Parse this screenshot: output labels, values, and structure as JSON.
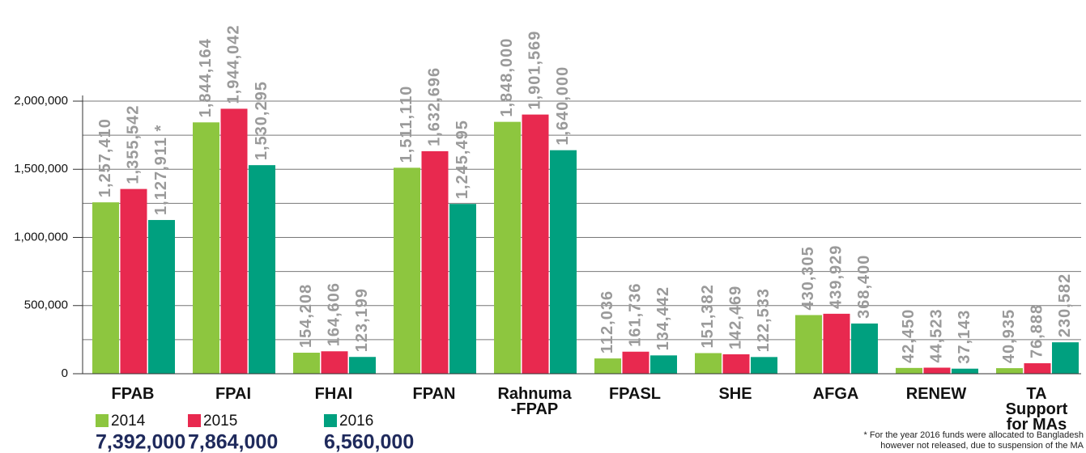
{
  "chart_data": {
    "type": "bar",
    "categories": [
      "FPAB",
      "FPAI",
      "FHAI",
      "FPAN",
      "Rahnuma\n-FPAP",
      "FPASL",
      "SHE",
      "AFGA",
      "RENEW",
      "TA\nSupport\nfor MAs"
    ],
    "series": [
      {
        "name": "2014",
        "color": "#8dc63f",
        "total": "7,392,000",
        "values": [
          1257410,
          1844164,
          154208,
          1511110,
          1848000,
          112036,
          151382,
          430305,
          42450,
          40935
        ],
        "value_labels": [
          "1,257,410",
          "1,844,164",
          "154,208",
          "1,511,110",
          "1,848,000",
          "112,036",
          "151,382",
          "430,305",
          "42,450",
          "40,935"
        ]
      },
      {
        "name": "2015",
        "color": "#e8294f",
        "total": "7,864,000",
        "values": [
          1355542,
          1944042,
          164606,
          1632696,
          1901569,
          161736,
          142469,
          439929,
          44523,
          76888
        ],
        "value_labels": [
          "1,355,542",
          "1,944,042",
          "164,606",
          "1,632,696",
          "1,901,569",
          "161,736",
          "142,469",
          "439,929",
          "44,523",
          "76,888"
        ]
      },
      {
        "name": "2016",
        "color": "#00a07f",
        "total": "6,560,000",
        "values": [
          1127911,
          1530295,
          123199,
          1245495,
          1640000,
          134442,
          122533,
          368400,
          37143,
          230582
        ],
        "value_labels": [
          "1,127,911 *",
          "1,530,295",
          "123,199",
          "1,245,495",
          "1,640,000",
          "134,442",
          "122,533",
          "368,400",
          "37,143",
          "230,582"
        ]
      }
    ],
    "ylim": [
      0,
      2742000
    ],
    "yticks": [
      0,
      {
        "value": 500000,
        "label": "500,000"
      },
      {
        "value": 1000000,
        "label": "1,000,000"
      },
      {
        "value": 1500000,
        "label": "1,500,000"
      },
      {
        "value": 2000000,
        "label": "2,000,000"
      }
    ],
    "minor_gridlines": [
      250000,
      750000,
      1250000,
      1750000
    ],
    "grid": true,
    "footnote": [
      "* For the year 2016 funds were allocated to Bangladesh",
      "however not released, due to suspension of the MA"
    ]
  }
}
